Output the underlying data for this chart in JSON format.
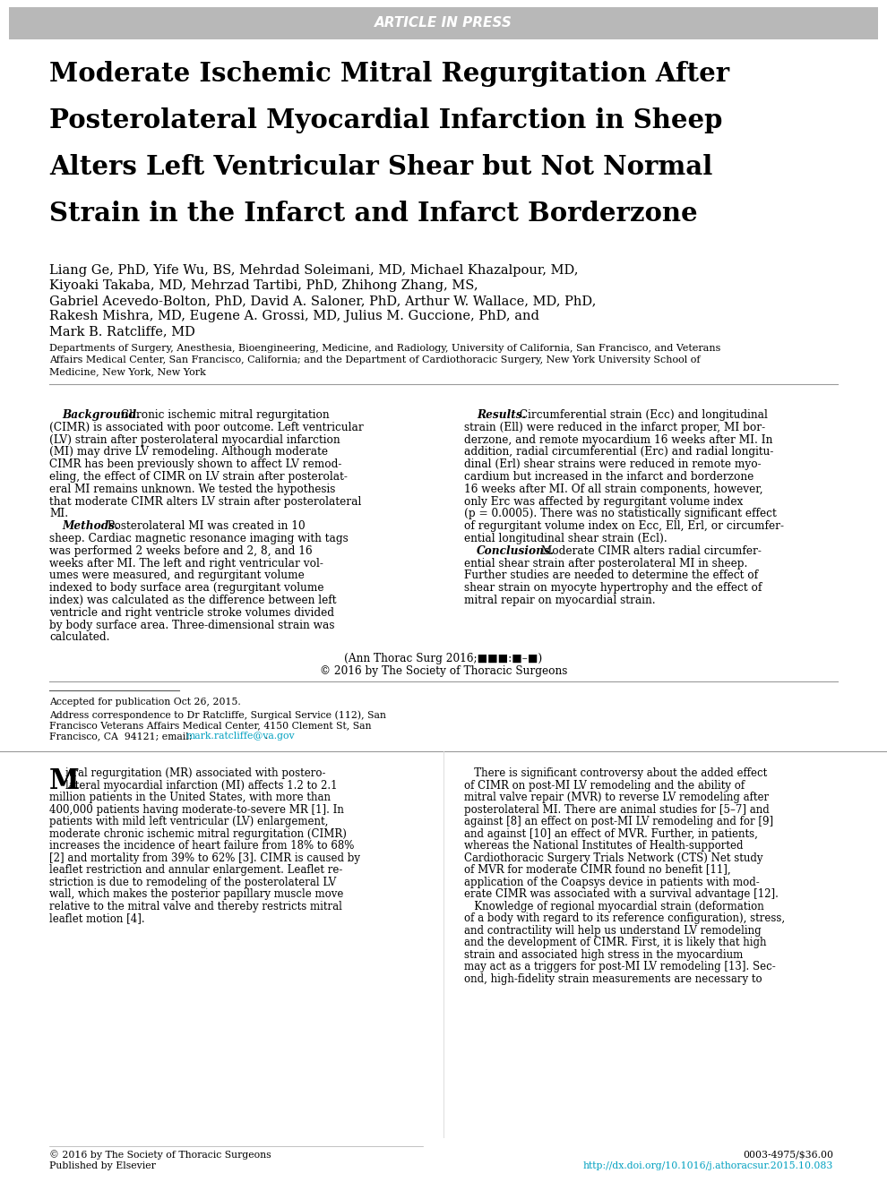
{
  "header_text": "ARTICLE IN PRESS",
  "header_bg": "#b8b8b8",
  "header_text_color": "#ffffff",
  "title_lines": [
    "Moderate Ischemic Mitral Regurgitation After",
    "Posterolateral Myocardial Infarction in Sheep",
    "Alters Left Ventricular Shear but Not Normal",
    "Strain in the Infarct and Infarct Borderzone"
  ],
  "authors_lines": [
    "Liang Ge, PhD, Yife Wu, BS, Mehrdad Soleimani, MD, Michael Khazalpour, MD,",
    "Kiyoaki Takaba, MD, Mehrzad Tartibi, PhD, Zhihong Zhang, MS,",
    "Gabriel Acevedo-Bolton, PhD, David A. Saloner, PhD, Arthur W. Wallace, MD, PhD,",
    "Rakesh Mishra, MD, Eugene A. Grossi, MD, Julius M. Guccione, PhD, and",
    "Mark B. Ratcliffe, MD"
  ],
  "affiliation_lines": [
    "Departments of Surgery, Anesthesia, Bioengineering, Medicine, and Radiology, University of California, San Francisco, and Veterans",
    "Affairs Medical Center, San Francisco, California; and the Department of Cardiothoracic Surgery, New York University School of",
    "Medicine, New York, New York"
  ],
  "abstract_bg_label": "Background.",
  "abstract_bg_body": "Chronic ischemic mitral regurgitation (CIMR) is associated with poor outcome. Left ventricular (LV) strain after posterolateral myocardial infarction (MI) may drive LV remodeling. Although moderate CIMR has been previously shown to affect LV remod- eling, the effect of CIMR on LV strain after posterolat- eral MI remains unknown. We tested the hypothesis that moderate CIMR alters LV strain after posterolateral MI.",
  "abstract_me_label": "Methods.",
  "abstract_me_body": "Posterolateral MI was created in 10 sheep. Cardiac magnetic resonance imaging with tags was performed 2 weeks before and 2, 8, and 16 weeks after MI. The left and right ventricular vol- umes were measured, and regurgitant volume indexed to body surface area (regurgitant volume index) was calculated as the difference between left ventricle and right ventricle stroke volumes divided by body surface area. Three-dimensional strain was calculated.",
  "abstract_re_label": "Results.",
  "abstract_re_body": "Circumferential strain (Ecc) and longitudinal strain (Ell) were reduced in the infarct proper, MI bor- derzone, and remote myocardium 16 weeks after MI. In addition, radial circumferential (Erc) and radial longitu- dinal (Erl) shear strains were reduced in remote myo- cardium but increased in the infarct and borderzone 16 weeks after MI. Of all strain components, however, only Erc was affected by regurgitant volume index (p = 0.0005). There was no statistically significant effect of regurgitant volume index on Ecc, Ell, Erl, or circumfer- ential longitudinal shear strain (Ecl).",
  "abstract_co_label": "Conclusions.",
  "abstract_co_body": "Moderate CIMR alters radial circumfer- ential shear strain after posterolateral MI in sheep. Further studies are needed to determine the effect of shear strain on myocyte hypertrophy and the effect of mitral repair on myocardial strain.",
  "citation_line1": "(Ann Thorac Surg 2016;■■■:■–■)",
  "citation_line2": "© 2016 by The Society of Thoracic Surgeons",
  "footnote1": "Accepted for publication Oct 26, 2015.",
  "footnote2a": "Address correspondence to Dr Ratcliffe, Surgical Service (112), San",
  "footnote2b": "Francisco Veterans Affairs Medical Center, 4150 Clement St, San",
  "footnote2c": "Francisco, CA  94121; email: ",
  "footnote2d": "mark.ratcliffe@va.gov",
  "footnote2e": ".",
  "intro_left_lines": [
    "itral regurgitation (MR) associated with postero-",
    "lateral myocardial infarction (MI) affects 1.2 to 2.1",
    "million patients in the United States, with more than",
    "400,000 patients having moderate-to-severe MR [1]. In",
    "patients with mild left ventricular (LV) enlargement,",
    "moderate chronic ischemic mitral regurgitation (CIMR)",
    "increases the incidence of heart failure from 18% to 68%",
    "[2] and mortality from 39% to 62% [3]. CIMR is caused by",
    "leaflet restriction and annular enlargement. Leaflet re-",
    "striction is due to remodeling of the posterolateral LV",
    "wall, which makes the posterior papillary muscle move",
    "relative to the mitral valve and thereby restricts mitral",
    "leaflet motion [4]."
  ],
  "intro_right_lines": [
    "   There is significant controversy about the added effect",
    "of CIMR on post-MI LV remodeling and the ability of",
    "mitral valve repair (MVR) to reverse LV remodeling after",
    "posterolateral MI. There are animal studies for [5–7] and",
    "against [8] an effect on post-MI LV remodeling and for [9]",
    "and against [10] an effect of MVR. Further, in patients,",
    "whereas the National Institutes of Health-supported",
    "Cardiothoracic Surgery Trials Network (CTS) Net study",
    "of MVR for moderate CIMR found no benefit [11],",
    "application of the Coapsys device in patients with mod-",
    "erate CIMR was associated with a survival advantage [12].",
    "   Knowledge of regional myocardial strain (deformation",
    "of a body with regard to its reference configuration), stress,",
    "and contractility will help us understand LV remodeling",
    "and the development of CIMR. First, it is likely that high",
    "strain and associated high stress in the myocardium",
    "may act as a triggers for post-MI LV remodeling [13]. Sec-",
    "ond, high-fidelity strain measurements are necessary to"
  ],
  "footer_left_line1": "© 2016 by The Society of Thoracic Surgeons",
  "footer_left_line2": "Published by Elsevier",
  "footer_right_top": "0003-4975/$36.00",
  "footer_right_bottom": "http://dx.doi.org/10.1016/j.athoracsur.2015.10.083",
  "bg_color": "#ffffff",
  "text_color": "#000000",
  "link_color": "#00a0c0"
}
